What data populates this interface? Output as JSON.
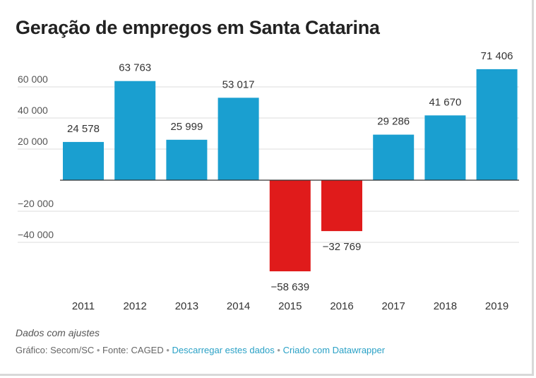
{
  "colors": {
    "positive": "#1a9fd0",
    "negative": "#e01b1b",
    "grid": "#dddddd",
    "zero_line": "#333333",
    "text": "#333333",
    "axis_text": "#555555",
    "link": "#2aa1c6"
  },
  "chart_data": {
    "type": "bar",
    "title": "Geração de empregos em Santa Catarina",
    "categories": [
      "2011",
      "2012",
      "2013",
      "2014",
      "2015",
      "2016",
      "2017",
      "2018",
      "2019"
    ],
    "values": [
      24578,
      63763,
      25999,
      53017,
      -58639,
      -32769,
      29286,
      41670,
      71406
    ],
    "value_labels": [
      "24 578",
      "63 763",
      "25 999",
      "53 017",
      "−58 639",
      "−32 769",
      "29 286",
      "41 670",
      "71 406"
    ],
    "y_ticks": [
      60000,
      40000,
      20000,
      -20000,
      -40000
    ],
    "y_tick_labels": [
      "60 000",
      "40 000",
      "20 000",
      "−20 000",
      "−40 000"
    ],
    "ylim": [
      -58639,
      71406
    ],
    "grid": true,
    "xlabel": "",
    "ylabel": ""
  },
  "notes": "Dados com ajustes",
  "footer": {
    "chart_by": "Gráfico: Secom/SC",
    "separator": " • ",
    "source": "Fonte: CAGED",
    "download_link": "Descarregar estes dados",
    "created_with": "Criado com Datawrapper"
  }
}
